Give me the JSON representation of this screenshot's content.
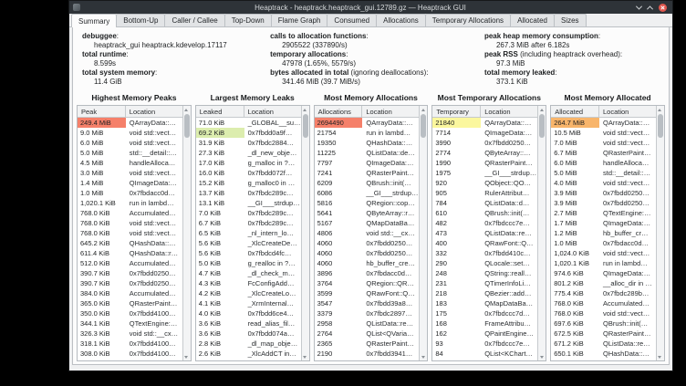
{
  "window": {
    "title": "Heaptrack - heaptrack.heaptrack_gui.12789.gz — Heaptrack GUI"
  },
  "tabs": [
    {
      "label": "Summary",
      "active": true
    },
    {
      "label": "Bottom-Up",
      "active": false
    },
    {
      "label": "Caller / Callee",
      "active": false
    },
    {
      "label": "Top-Down",
      "active": false
    },
    {
      "label": "Flame Graph",
      "active": false
    },
    {
      "label": "Consumed",
      "active": false
    },
    {
      "label": "Allocations",
      "active": false
    },
    {
      "label": "Temporary Allocations",
      "active": false
    },
    {
      "label": "Allocated",
      "active": false
    },
    {
      "label": "Sizes",
      "active": false
    }
  ],
  "summary": {
    "columns": [
      {
        "items": [
          {
            "label": "debuggee",
            "note": ":",
            "value": "heaptrack_gui heaptrack.kdevelop.17117"
          },
          {
            "label": "total runtime",
            "note": ":",
            "value": "8.599s"
          },
          {
            "label": "total system memory",
            "note": ":",
            "value": "11.4 GiB"
          }
        ]
      },
      {
        "items": [
          {
            "label": "calls to allocation functions",
            "note": ":",
            "value": "2905522 (337890/s)"
          },
          {
            "label": "temporary allocations",
            "note": ":",
            "value": "47978 (1.65%, 5579/s)"
          },
          {
            "label": "bytes allocated in total",
            "note": " (ignoring deallocations):",
            "value": "341.46 MiB (39.7 MiB/s)"
          }
        ]
      },
      {
        "items": [
          {
            "label": "peak heap memory consumption",
            "note": ":",
            "value": "267.3 MiB after 6.182s"
          },
          {
            "label": "peak RSS",
            "note": " (including heaptrack overhead):",
            "value": "97.3 MiB"
          },
          {
            "label": "total memory leaked",
            "note": ":",
            "value": "373.1 KiB"
          }
        ]
      }
    ]
  },
  "colors": {
    "heat": {
      "red": "#f5806a",
      "green": "#dcedae",
      "yellow": "#fbf79e",
      "orange": "#f8b56b"
    }
  },
  "tables": [
    {
      "title": "Highest Memory Peaks",
      "headers": {
        "value": "Peak",
        "location": "Location"
      },
      "rows": [
        {
          "v": "249.4 MiB",
          "loc": "QArrayData::…",
          "hl": "red"
        },
        {
          "v": "9.0 MiB",
          "loc": "void std::vect…"
        },
        {
          "v": "6.0 MiB",
          "loc": "void std::vect…"
        },
        {
          "v": "5.0 MiB",
          "loc": "std::__detail::…"
        },
        {
          "v": "4.5 MiB",
          "loc": "handleAlloca…"
        },
        {
          "v": "3.0 MiB",
          "loc": "void std::vect…"
        },
        {
          "v": "1.4 MiB",
          "loc": "QImageData:…"
        },
        {
          "v": "1.0 MiB",
          "loc": "0x7fbdacc0d…"
        },
        {
          "v": "1,020.1 KiB",
          "loc": "run in lambd…"
        },
        {
          "v": "768.0 KiB",
          "loc": "Accumulated…"
        },
        {
          "v": "768.0 KiB",
          "loc": "void std::vect…"
        },
        {
          "v": "768.0 KiB",
          "loc": "void std::vect…"
        },
        {
          "v": "645.2 KiB",
          "loc": "QHashData::…"
        },
        {
          "v": "611.4 KiB",
          "loc": "QHashData::r…"
        },
        {
          "v": "512.0 KiB",
          "loc": "Accumulated…"
        },
        {
          "v": "390.7 KiB",
          "loc": "0x7fbdd0250…"
        },
        {
          "v": "390.7 KiB",
          "loc": "0x7fbdd0250…"
        },
        {
          "v": "384.0 KiB",
          "loc": "Accumulated…"
        },
        {
          "v": "365.0 KiB",
          "loc": "QRasterPaint…"
        },
        {
          "v": "350.0 KiB",
          "loc": "0x7fbdd4100…"
        },
        {
          "v": "344.1 KiB",
          "loc": "QTextEngine:…"
        },
        {
          "v": "326.3 KiB",
          "loc": "void std::__cx…"
        },
        {
          "v": "318.1 KiB",
          "loc": "0x7fbdd4100…"
        },
        {
          "v": "308.0 KiB",
          "loc": "0x7fbdd4100…"
        },
        {
          "v": "288.4 KiB",
          "loc": "__alloc_dir in …"
        },
        {
          "v": "280.0 KiB",
          "loc": "operator new…"
        }
      ]
    },
    {
      "title": "Largest Memory Leaks",
      "headers": {
        "value": "Leaked",
        "location": "Location"
      },
      "rows": [
        {
          "v": "71.0 KiB",
          "loc": "_GLOBAL__su…"
        },
        {
          "v": "69.2 KiB",
          "loc": "0x7fbdd0a9f…",
          "hl": "green"
        },
        {
          "v": "31.9 KiB",
          "loc": "0x7fbdc2884…"
        },
        {
          "v": "27.3 KiB",
          "loc": "_dl_new_obje…"
        },
        {
          "v": "17.0 KiB",
          "loc": "g_malloc in ?…"
        },
        {
          "v": "16.0 KiB",
          "loc": "0x7fbdd072f…"
        },
        {
          "v": "15.2 KiB",
          "loc": "g_malloc0 in …"
        },
        {
          "v": "13.7 KiB",
          "loc": "0x7fbdc289c…"
        },
        {
          "v": "13.1 KiB",
          "loc": "__GI___strdup…"
        },
        {
          "v": "7.0 KiB",
          "loc": "0x7fbdc289c…"
        },
        {
          "v": "6.7 KiB",
          "loc": "0x7fbdc289c…"
        },
        {
          "v": "6.5 KiB",
          "loc": "_nl_intern_lo…"
        },
        {
          "v": "5.6 KiB",
          "loc": "_XlcCreateDe…"
        },
        {
          "v": "5.6 KiB",
          "loc": "0x7fbdcd4fc…"
        },
        {
          "v": "5.0 KiB",
          "loc": "g_realloc in ?…"
        },
        {
          "v": "4.7 KiB",
          "loc": "_dl_check_m…"
        },
        {
          "v": "4.3 KiB",
          "loc": "FcConfigAdd…"
        },
        {
          "v": "4.2 KiB",
          "loc": "_XlcCreateLo…"
        },
        {
          "v": "4.1 KiB",
          "loc": "_XrmInternal…"
        },
        {
          "v": "4.0 KiB",
          "loc": "0x7fbdd6ce4…"
        },
        {
          "v": "3.6 KiB",
          "loc": "read_alias_fil…"
        },
        {
          "v": "3.6 KiB",
          "loc": "0x7fbdd074a…"
        },
        {
          "v": "2.8 KiB",
          "loc": "_dl_map_obje…"
        },
        {
          "v": "2.6 KiB",
          "loc": "_XlcAddCT in…"
        },
        {
          "v": "2.0 KiB",
          "loc": "FcFontSetAd…"
        },
        {
          "v": "1.9 KiB",
          "loc": "QObject::QO…"
        }
      ]
    },
    {
      "title": "Most Memory Allocations",
      "headers": {
        "value": "Allocations",
        "location": "Location"
      },
      "rows": [
        {
          "v": "2694490",
          "loc": "QArrayData::…",
          "hl": "red"
        },
        {
          "v": "21754",
          "loc": "run in lambd…"
        },
        {
          "v": "19350",
          "loc": "QHashData::…"
        },
        {
          "v": "11225",
          "loc": "QListData::de…"
        },
        {
          "v": "7797",
          "loc": "QImageData:…"
        },
        {
          "v": "7241",
          "loc": "QRasterPaint…"
        },
        {
          "v": "6209",
          "loc": "QBrush::init(…"
        },
        {
          "v": "6086",
          "loc": "__GI___strdup…"
        },
        {
          "v": "5816",
          "loc": "QRegion::cop…"
        },
        {
          "v": "5641",
          "loc": "QByteArray::r…"
        },
        {
          "v": "5167",
          "loc": "QMapDataBa…"
        },
        {
          "v": "4806",
          "loc": "void std::__cx…"
        },
        {
          "v": "4060",
          "loc": "0x7fbdd0250…"
        },
        {
          "v": "4060",
          "loc": "0x7fbdd0250…"
        },
        {
          "v": "4060",
          "loc": "hb_buffer_cre…"
        },
        {
          "v": "3896",
          "loc": "0x7fbdacc0d…"
        },
        {
          "v": "3764",
          "loc": "QRegion::QR…"
        },
        {
          "v": "3599",
          "loc": "QRawFont::Q…"
        },
        {
          "v": "3547",
          "loc": "0x7fbdd39a8…"
        },
        {
          "v": "3379",
          "loc": "0x7fbdc2897…"
        },
        {
          "v": "2958",
          "loc": "QListData::re…"
        },
        {
          "v": "2764",
          "loc": "QList<QVaria…"
        },
        {
          "v": "2365",
          "loc": "QRasterPaint…"
        },
        {
          "v": "2190",
          "loc": "0x7fbdd3941…"
        },
        {
          "v": "1921",
          "loc": "QTextEngine:…"
        },
        {
          "v": "1903",
          "loc": "QTextEngine…"
        }
      ]
    },
    {
      "title": "Most Temporary Allocations",
      "headers": {
        "value": "Temporary",
        "location": "Location"
      },
      "rows": [
        {
          "v": "21840",
          "loc": "QArrayData::…",
          "hl": "yellow"
        },
        {
          "v": "7714",
          "loc": "QImageData:…"
        },
        {
          "v": "3990",
          "loc": "0x7fbdd0250…"
        },
        {
          "v": "2774",
          "loc": "QByteArray::…"
        },
        {
          "v": "1990",
          "loc": "QRasterPaint…"
        },
        {
          "v": "1975",
          "loc": "__GI___strdup…"
        },
        {
          "v": "920",
          "loc": "QObject::QO…"
        },
        {
          "v": "905",
          "loc": "RulerAttribut…"
        },
        {
          "v": "784",
          "loc": "QListData::d…"
        },
        {
          "v": "610",
          "loc": "QBrush::init(…"
        },
        {
          "v": "482",
          "loc": "0x7fbdccc7e…"
        },
        {
          "v": "473",
          "loc": "QListData::re…"
        },
        {
          "v": "400",
          "loc": "QRawFont::Q…"
        },
        {
          "v": "332",
          "loc": "0x7fbdd410c…"
        },
        {
          "v": "290",
          "loc": "QLocale::set…"
        },
        {
          "v": "248",
          "loc": "QString::reall…"
        },
        {
          "v": "231",
          "loc": "QTimerInfoLi…"
        },
        {
          "v": "218",
          "loc": "QBezier::add…"
        },
        {
          "v": "183",
          "loc": "QMapDataBa…"
        },
        {
          "v": "175",
          "loc": "0x7fbdccc7d…"
        },
        {
          "v": "168",
          "loc": "FrameAttribu…"
        },
        {
          "v": "162",
          "loc": "QPaintEngine…"
        },
        {
          "v": "93",
          "loc": "0x7fbdccc7e…"
        },
        {
          "v": "84",
          "loc": "QList<KChart…"
        },
        {
          "v": "82",
          "loc": "QFileInfo::QFi…"
        },
        {
          "v": "78",
          "loc": "QRegion::QR…"
        }
      ]
    },
    {
      "title": "Most Memory Allocated",
      "headers": {
        "value": "Allocated",
        "location": "Location"
      },
      "rows": [
        {
          "v": "264.7 MiB",
          "loc": "QArrayData::…",
          "hl": "orange"
        },
        {
          "v": "10.5 MiB",
          "loc": "void std::vect…"
        },
        {
          "v": "7.0 MiB",
          "loc": "void std::vect…"
        },
        {
          "v": "6.7 MiB",
          "loc": "QRasterPaint…"
        },
        {
          "v": "6.0 MiB",
          "loc": "handleAlloca…"
        },
        {
          "v": "5.0 MiB",
          "loc": "std::__detail::…"
        },
        {
          "v": "4.0 MiB",
          "loc": "void std::vect…"
        },
        {
          "v": "3.9 MiB",
          "loc": "0x7fbdd0250…"
        },
        {
          "v": "3.9 MiB",
          "loc": "0x7fbdd0250…"
        },
        {
          "v": "2.7 MiB",
          "loc": "QTextEngine:…"
        },
        {
          "v": "1.7 MiB",
          "loc": "QImageData:…"
        },
        {
          "v": "1.2 MiB",
          "loc": "hb_buffer_cr…"
        },
        {
          "v": "1.0 MiB",
          "loc": "0x7fbdacc0d…"
        },
        {
          "v": "1,024.0 KiB",
          "loc": "void std::vect…"
        },
        {
          "v": "1,020.1 KiB",
          "loc": "run in lambd…"
        },
        {
          "v": "974.6 KiB",
          "loc": "QImageData:…"
        },
        {
          "v": "801.2 KiB",
          "loc": "__alloc_dir in …"
        },
        {
          "v": "775.4 KiB",
          "loc": "0x7fbdc289b…"
        },
        {
          "v": "768.0 KiB",
          "loc": "Accumulated…"
        },
        {
          "v": "768.0 KiB",
          "loc": "void std::vect…"
        },
        {
          "v": "697.6 KiB",
          "loc": "QBrush::init(…"
        },
        {
          "v": "672.5 KiB",
          "loc": "QRasterPaint…"
        },
        {
          "v": "671.2 KiB",
          "loc": "QListData::re…"
        },
        {
          "v": "650.1 KiB",
          "loc": "QHashData::…"
        },
        {
          "v": "648.4 KiB",
          "loc": "QHashData::r…"
        },
        {
          "v": "639.3 KiB",
          "loc": "XML_SetBuff…"
        }
      ]
    }
  ]
}
